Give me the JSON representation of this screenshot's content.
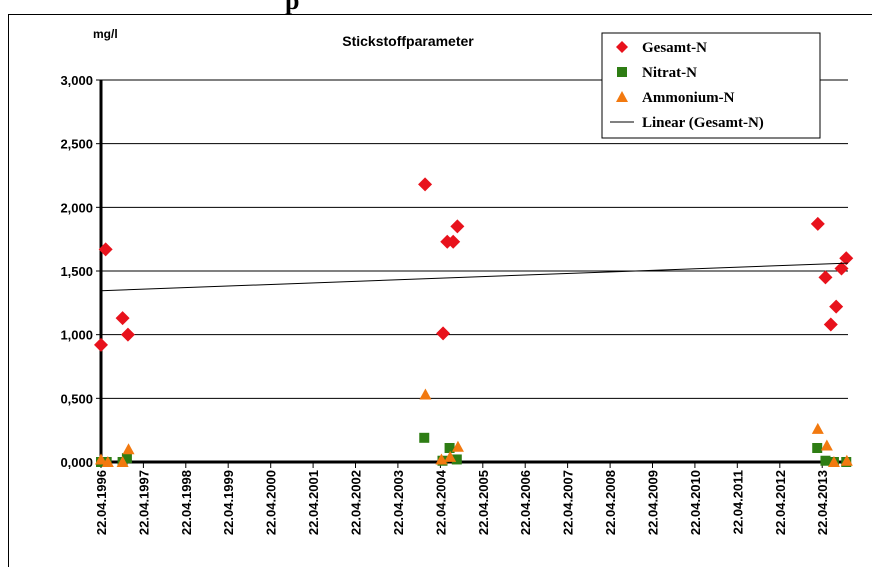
{
  "header_fragment": "p",
  "chart_data": {
    "type": "scatter",
    "title": "Stickstoffparameter",
    "ylabel": "mg/l",
    "ylim": [
      0,
      3
    ],
    "yticks": [
      "0,000",
      "0,500",
      "1,000",
      "1,500",
      "2,000",
      "2,500",
      "3,000"
    ],
    "ytick_values": [
      0,
      0.5,
      1,
      1.5,
      2,
      2.5,
      3
    ],
    "xlim": [
      "1996-04-22",
      "2013-11-30"
    ],
    "xticks": [
      "22.04.1996",
      "22.04.1997",
      "22.04.1998",
      "22.04.1999",
      "22.04.2000",
      "22.04.2001",
      "22.04.2002",
      "22.04.2003",
      "22.04.2004",
      "22.04.2005",
      "22.04.2006",
      "22.04.2007",
      "22.04.2008",
      "22.04.2009",
      "22.04.2010",
      "22.04.2011",
      "22.04.2012",
      "22.04.2013"
    ],
    "xtick_years": [
      1996,
      1997,
      1998,
      1999,
      2000,
      2001,
      2002,
      2003,
      2004,
      2005,
      2006,
      2007,
      2008,
      2009,
      2010,
      2011,
      2012,
      2013
    ],
    "grid": "horizontal",
    "legend_position": "top-right",
    "series": [
      {
        "name": "Gesamt-N",
        "marker": "diamond",
        "color": "#e8121c",
        "points": [
          {
            "x": "1996-04-22",
            "y": 0.92
          },
          {
            "x": "1996-06-01",
            "y": 1.67
          },
          {
            "x": "1996-10-25",
            "y": 1.13
          },
          {
            "x": "1996-12-10",
            "y": 1.0
          },
          {
            "x": "2003-12-12",
            "y": 2.18
          },
          {
            "x": "2004-05-15",
            "y": 1.01
          },
          {
            "x": "2004-06-20",
            "y": 1.73
          },
          {
            "x": "2004-08-10",
            "y": 1.73
          },
          {
            "x": "2004-09-15",
            "y": 1.85
          },
          {
            "x": "2013-03-15",
            "y": 1.87
          },
          {
            "x": "2013-05-20",
            "y": 1.45
          },
          {
            "x": "2013-07-05",
            "y": 1.08
          },
          {
            "x": "2013-08-20",
            "y": 1.22
          },
          {
            "x": "2013-10-05",
            "y": 1.52
          },
          {
            "x": "2013-11-15",
            "y": 1.6
          }
        ]
      },
      {
        "name": "Nitrat-N",
        "marker": "square",
        "color": "#2e7d14",
        "points": [
          {
            "x": "1996-04-22",
            "y": 0.0
          },
          {
            "x": "1996-06-10",
            "y": 0.0
          },
          {
            "x": "1996-10-25",
            "y": 0.0
          },
          {
            "x": "1996-12-01",
            "y": 0.03
          },
          {
            "x": "2003-12-05",
            "y": 0.19
          },
          {
            "x": "2004-05-10",
            "y": 0.01
          },
          {
            "x": "2004-07-10",
            "y": 0.11
          },
          {
            "x": "2004-09-10",
            "y": 0.02
          },
          {
            "x": "2013-03-10",
            "y": 0.11
          },
          {
            "x": "2013-05-20",
            "y": 0.01
          },
          {
            "x": "2013-08-01",
            "y": 0.0
          },
          {
            "x": "2013-11-15",
            "y": 0.0
          }
        ]
      },
      {
        "name": "Ammonium-N",
        "marker": "triangle",
        "color": "#f2790f",
        "points": [
          {
            "x": "1996-04-22",
            "y": 0.02
          },
          {
            "x": "1996-06-20",
            "y": 0.0
          },
          {
            "x": "1996-10-25",
            "y": 0.0
          },
          {
            "x": "1996-12-15",
            "y": 0.1
          },
          {
            "x": "2003-12-15",
            "y": 0.53
          },
          {
            "x": "2004-05-01",
            "y": 0.02
          },
          {
            "x": "2004-07-15",
            "y": 0.04
          },
          {
            "x": "2004-09-20",
            "y": 0.12
          },
          {
            "x": "2013-03-15",
            "y": 0.26
          },
          {
            "x": "2013-06-01",
            "y": 0.13
          },
          {
            "x": "2013-08-01",
            "y": 0.0
          },
          {
            "x": "2013-11-20",
            "y": 0.01
          }
        ]
      },
      {
        "name": "Linear (Gesamt-N)",
        "type": "trendline",
        "color": "#000000",
        "points": [
          {
            "x": "1996-04-22",
            "y": 1.345
          },
          {
            "x": "2013-11-30",
            "y": 1.562
          }
        ]
      }
    ]
  }
}
